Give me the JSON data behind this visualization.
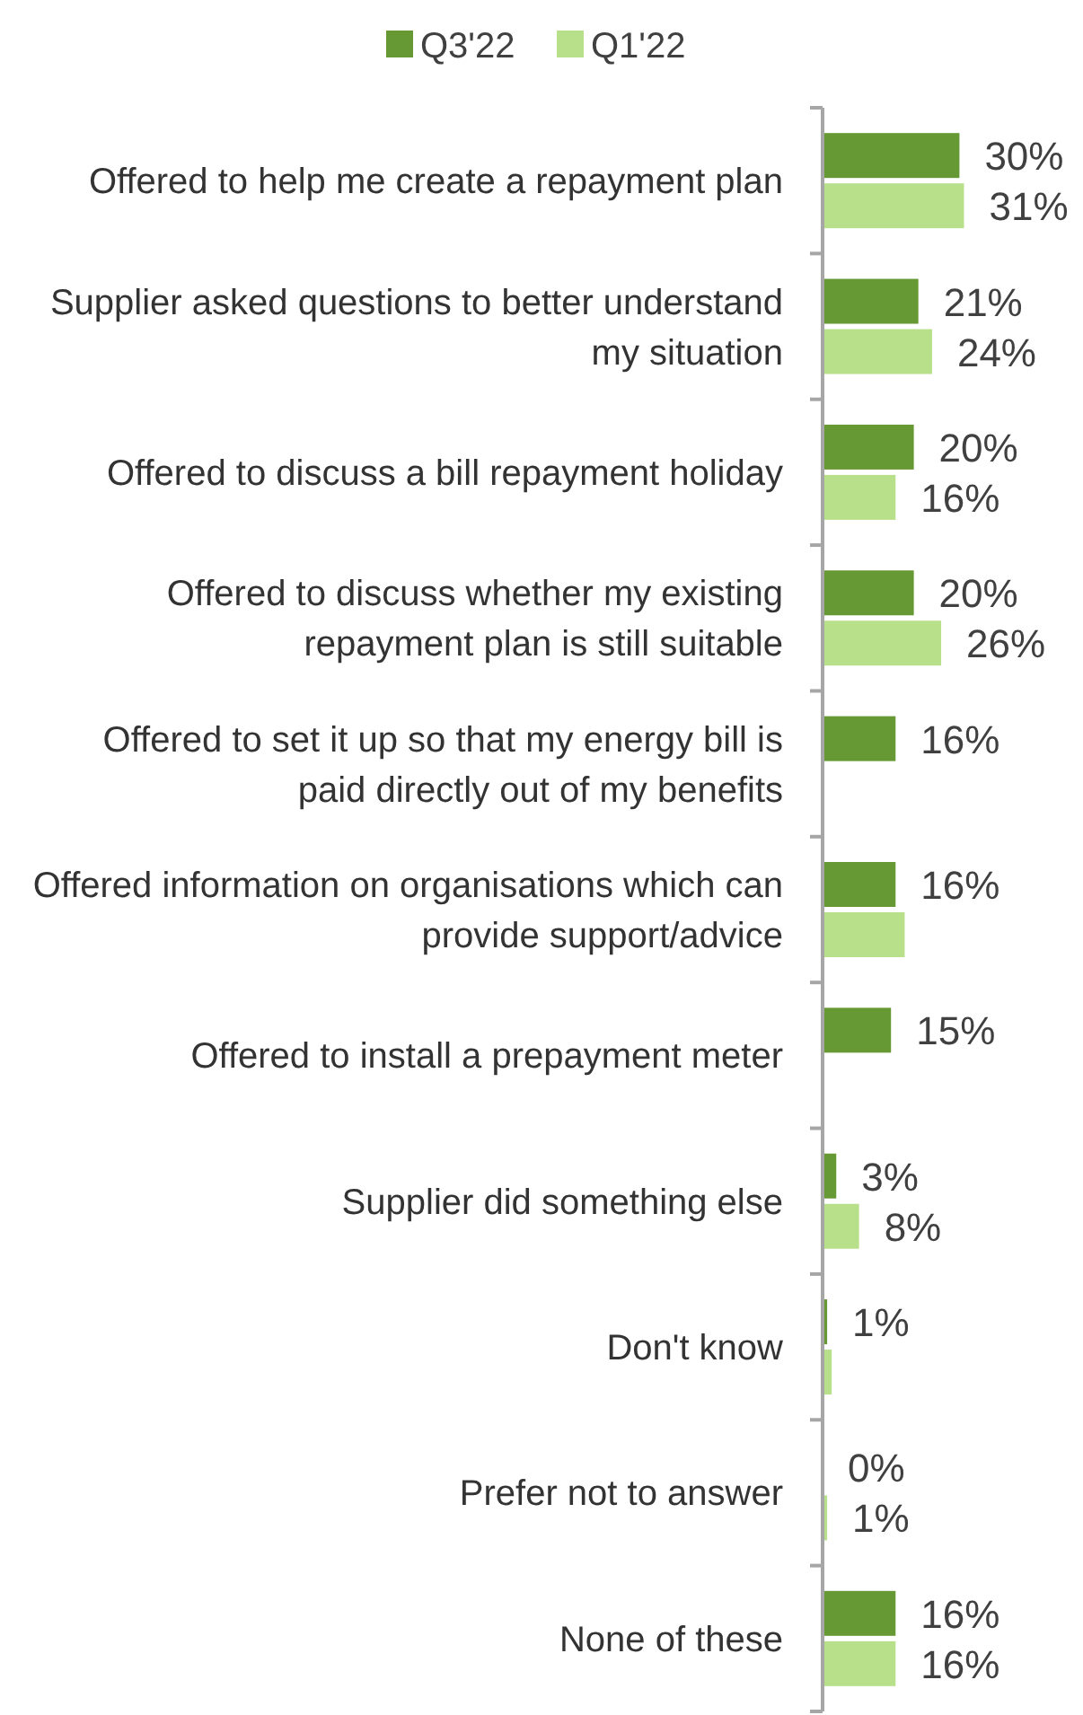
{
  "chart_data": {
    "type": "bar",
    "orientation": "horizontal",
    "legend": "top",
    "categories": [
      "Offered to help me create a repayment plan",
      "Supplier asked questions to better understand my situation",
      "Offered to discuss a bill repayment holiday",
      "Offered to discuss whether my existing repayment plan is still suitable",
      "Offered to set it up so that my energy bill is paid directly out of my benefits",
      "Offered information on organisations which can provide support/advice",
      "Offered to install a prepayment meter",
      "Supplier did something else",
      "Don't know",
      "Prefer not to answer",
      "None of these"
    ],
    "series": [
      {
        "name": "Q3'22",
        "color": "#669933",
        "values": [
          30,
          21,
          20,
          20,
          16,
          16,
          15,
          3,
          1,
          0,
          16
        ],
        "value_labels": [
          "30%",
          "21%",
          "20%",
          "20%",
          "16%",
          "16%",
          "15%",
          "3%",
          "1%",
          "0%",
          "16%"
        ]
      },
      {
        "name": "Q1'22",
        "color": "#b8e08a",
        "values": [
          31,
          24,
          16,
          26,
          null,
          18,
          null,
          8,
          2,
          1,
          16
        ],
        "value_labels": [
          "31%",
          "24%",
          "16%",
          "26%",
          null,
          null,
          null,
          "8%",
          null,
          "1%",
          "16%"
        ]
      }
    ]
  }
}
